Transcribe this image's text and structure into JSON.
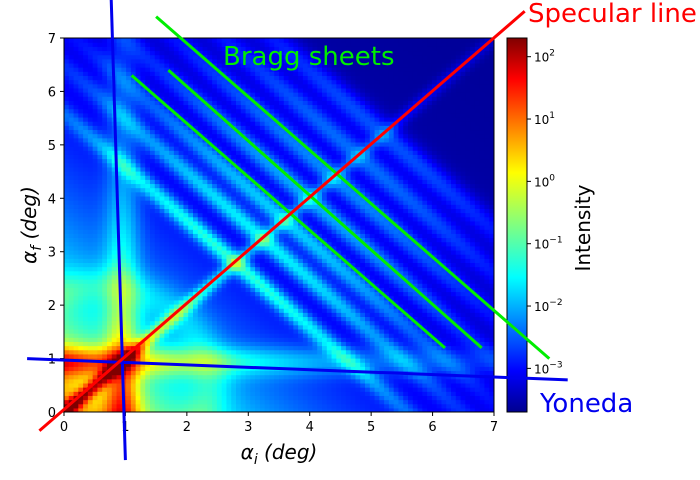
{
  "chart_data": {
    "type": "heatmap",
    "title": "",
    "x_axis": {
      "label_symbol": "α",
      "label_subscript": "i",
      "label_unit": " (deg)",
      "range": [
        0,
        7
      ],
      "ticks": [
        "0",
        "1",
        "2",
        "3",
        "4",
        "5",
        "6",
        "7"
      ]
    },
    "y_axis": {
      "label_symbol": "α",
      "label_subscript": "f",
      "label_unit": " (deg)",
      "range": [
        0,
        7
      ],
      "ticks": [
        "0",
        "1",
        "2",
        "3",
        "4",
        "5",
        "6",
        "7"
      ]
    },
    "colorbar": {
      "label": "Intensity",
      "scale": "log",
      "colormap": "jet",
      "range_exponents": [
        -3.7,
        2.3
      ],
      "ticks": [
        {
          "mantissa": "10",
          "exponent": "2",
          "value": 100
        },
        {
          "mantissa": "10",
          "exponent": "1",
          "value": 10
        },
        {
          "mantissa": "10",
          "exponent": "0",
          "value": 1
        },
        {
          "mantissa": "10",
          "exponent": "−1",
          "value": 0.1
        },
        {
          "mantissa": "10",
          "exponent": "−2",
          "value": 0.01
        },
        {
          "mantissa": "10",
          "exponent": "−3",
          "value": 0.001
        }
      ]
    },
    "features": {
      "yoneda_alpha_deg": 0.95,
      "bragg_sheet_sums_deg": [
        5.6,
        6.5,
        7.2,
        8.0,
        8.8,
        9.6,
        10.4
      ],
      "specular_ridge": "alpha_f = alpha_i"
    },
    "annotations": [
      {
        "text": "Specular line",
        "color": "#ff0000",
        "line_from": [
          -0.4,
          -0.35
        ],
        "line_to": [
          7.5,
          7.5
        ]
      },
      {
        "text": "Bragg sheets",
        "color": "#00ee00",
        "lines": [
          {
            "from": [
              1.1,
              6.3
            ],
            "to": [
              6.2,
              1.2
            ]
          },
          {
            "from": [
              1.7,
              6.4
            ],
            "to": [
              6.8,
              1.2
            ]
          },
          {
            "from": [
              1.5,
              7.4
            ],
            "to": [
              7.9,
              1.0
            ]
          }
        ]
      },
      {
        "text": "Yoneda",
        "color": "#0000ee",
        "lines": [
          {
            "from": [
              0.75,
              8.4
            ],
            "to": [
              1.0,
              -0.9
            ]
          },
          {
            "from": [
              -0.6,
              1.0
            ],
            "to": [
              8.2,
              0.6
            ]
          }
        ]
      }
    ]
  }
}
